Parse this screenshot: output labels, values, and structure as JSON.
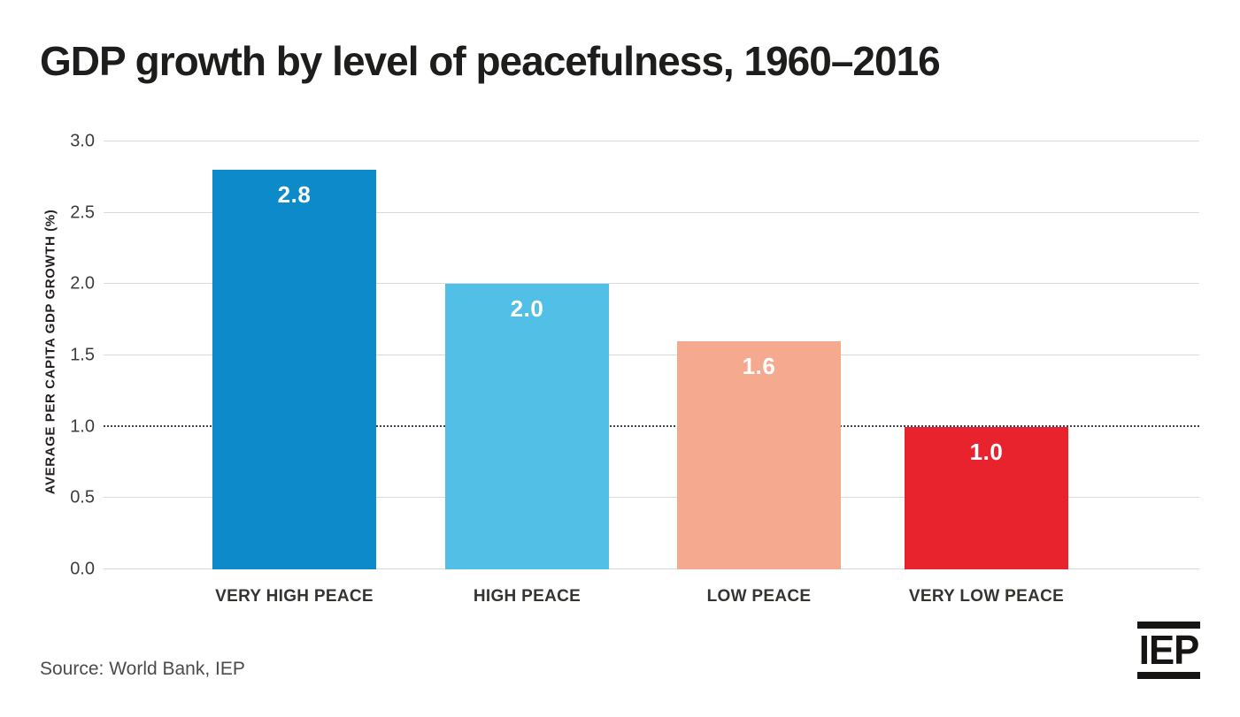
{
  "title": "GDP growth by level of peacefulness, 1960–2016",
  "source": "Source: World Bank, IEP",
  "logo": {
    "text": "IEP"
  },
  "colors": {
    "title_text": "#1d1d1b",
    "gridline": "#d9d9d9",
    "reference_line": "#3d4450",
    "tick_text": "#3d3d3c",
    "category_text": "#343431",
    "bar_value_text": "#ffffff",
    "source_text": "#4b4b4d",
    "logo": "#161513"
  },
  "chart_data": {
    "type": "bar",
    "title": "GDP growth by level of peacefulness, 1960–2016",
    "categories": [
      "VERY HIGH PEACE",
      "HIGH PEACE",
      "LOW PEACE",
      "VERY LOW PEACE"
    ],
    "values": [
      2.8,
      2.0,
      1.6,
      1.0
    ],
    "value_labels": [
      "2.8",
      "2.0",
      "1.6",
      "1.0"
    ],
    "bar_colors": [
      "#0d8aca",
      "#52bfe6",
      "#f5a98e",
      "#e9232e"
    ],
    "xlabel": "",
    "ylabel": "AVERAGE PER CAPITA GDP GROWTH (%)",
    "ylim": [
      0,
      3.0
    ],
    "yticks": [
      0.0,
      0.5,
      1.0,
      1.5,
      2.0,
      2.5,
      3.0
    ],
    "ytick_labels": [
      "0.0",
      "0.5",
      "1.0",
      "1.5",
      "2.0",
      "2.5",
      "3.0"
    ],
    "grid": "horizontal-solid-light-gray",
    "reference_line": {
      "value": 1.0,
      "style": "dotted"
    },
    "legend": "none",
    "source_note": "Source: World Bank, IEP"
  }
}
